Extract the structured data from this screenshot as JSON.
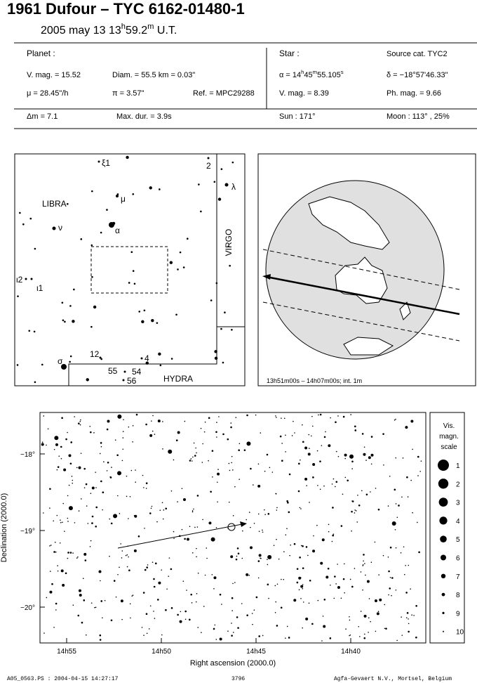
{
  "header": {
    "title": "1961 Dufour  –  TYC 6162-01480-1",
    "date": [
      "2005 may 13  13",
      "h",
      "59.2",
      "m",
      " U.T."
    ]
  },
  "info": [
    [
      "Planet :"
    ],
    [
      "Star :"
    ],
    [
      "Source cat.  TYC2"
    ],
    [
      "V. mag. = 15.52"
    ],
    [
      "Diam. = 55.5 km = 0.03\""
    ],
    [
      "α = 14",
      "h",
      "45",
      "m",
      "55.105",
      "s"
    ],
    [
      "δ = −18°57'46.33\""
    ],
    [
      "μ =  28.45\"/h"
    ],
    [
      "π =  3.57\""
    ],
    [
      "Ref. = MPC29288"
    ],
    [
      "V. mag. =  8.39"
    ],
    [
      "Ph. mag. =  9.66"
    ],
    [
      "Δm = 7.1"
    ],
    [
      "Max. dur. = 3.9s"
    ],
    [
      "Sun : 171°"
    ],
    [
      "Moon : 113° , 25%"
    ]
  ],
  "finder": {
    "labels": [
      "ξ1",
      "2",
      "λ",
      "LIBRA",
      "μ",
      "ν",
      "α",
      "VIRGO",
      "ι2",
      "ι1",
      "σ",
      "12",
      "4",
      "55",
      "54",
      "56",
      "HYDRA"
    ]
  },
  "globe": {
    "caption": "13h51m00s – 14h07m00s; int.  1m"
  },
  "sky": {
    "ylabel": "Declination (2000.0)",
    "xlabel": "Right ascension (2000.0)",
    "xticks": [
      "14h55",
      "14h50",
      "14h45",
      "14h40"
    ],
    "yticks": [
      "−18°",
      "−19°",
      "−20°"
    ],
    "legend_title": [
      "Vis.",
      "magn.",
      "scale"
    ],
    "legend": [
      "1",
      "2",
      "3",
      "4",
      "5",
      "6",
      "7",
      "8",
      "9",
      "10"
    ]
  },
  "footer": {
    "left": "A05_0563.PS : 2004-04-15 14:27:17",
    "center": "3796",
    "right": "Agfa-Gevaert N.V., Mortsel, Belgium"
  }
}
